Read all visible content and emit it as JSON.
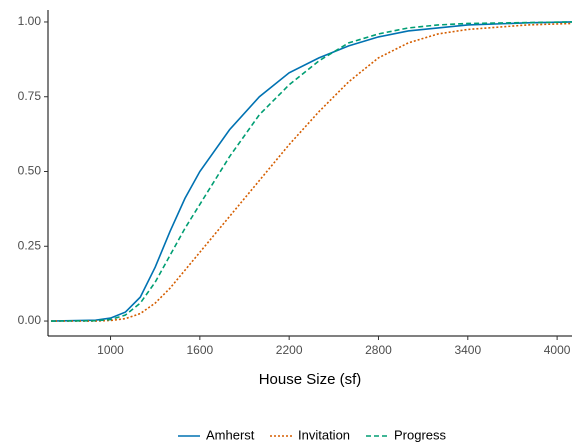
{
  "chart_data": {
    "type": "line",
    "x_label": "House Size (sf)",
    "x": [
      600,
      900,
      1000,
      1100,
      1200,
      1300,
      1400,
      1500,
      1600,
      1800,
      2000,
      2200,
      2400,
      2600,
      2800,
      3000,
      3200,
      3400,
      3800,
      4100
    ],
    "series": [
      {
        "name": "Amherst",
        "color": "#0072B2",
        "dash": "solid",
        "values": [
          0,
          0.003,
          0.01,
          0.03,
          0.08,
          0.18,
          0.3,
          0.41,
          0.5,
          0.64,
          0.75,
          0.83,
          0.88,
          0.92,
          0.95,
          0.97,
          0.98,
          0.99,
          0.997,
          1
        ]
      },
      {
        "name": "Invitation",
        "color": "#D55E00",
        "dash": "dotted",
        "values": [
          0,
          0,
          0.002,
          0.008,
          0.025,
          0.06,
          0.11,
          0.17,
          0.23,
          0.35,
          0.47,
          0.59,
          0.7,
          0.8,
          0.88,
          0.93,
          0.96,
          0.975,
          0.99,
          0.995
        ]
      },
      {
        "name": "Progress",
        "color": "#009E73",
        "dash": "dashed",
        "values": [
          0,
          0.001,
          0.005,
          0.02,
          0.06,
          0.13,
          0.22,
          0.31,
          0.39,
          0.55,
          0.69,
          0.79,
          0.87,
          0.93,
          0.96,
          0.98,
          0.99,
          0.995,
          0.998,
          1
        ]
      }
    ],
    "xlim": [
      580,
      4100
    ],
    "xticks": [
      1000,
      1600,
      2200,
      2800,
      3400,
      4000
    ],
    "ylim": [
      -0.05,
      1.04
    ],
    "yticks": [
      {
        "value": 0,
        "label": "0.00"
      },
      {
        "value": 0.25,
        "label": "0.25"
      },
      {
        "value": 0.5,
        "label": "0.50"
      },
      {
        "value": 0.75,
        "label": "0.75"
      },
      {
        "value": 1,
        "label": "1.00"
      }
    ],
    "legend": "bottom"
  }
}
